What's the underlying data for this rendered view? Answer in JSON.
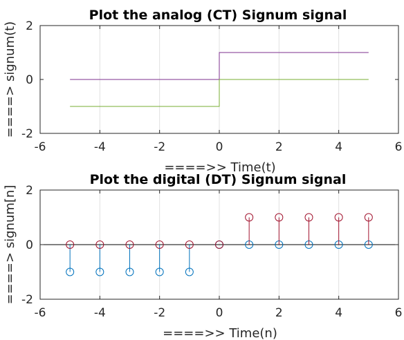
{
  "chart_data": [
    {
      "type": "line",
      "title": "Plot the analog (CT) Signum signal",
      "xlabel": "====>>  Time(t)",
      "ylabel": "====>  signum(t)",
      "xlim": [
        -6,
        6
      ],
      "ylim": [
        -2,
        2
      ],
      "xticks": [
        "-6",
        "-4",
        "-2",
        "0",
        "2",
        "4",
        "6"
      ],
      "yticks": [
        "-2",
        "0",
        "2"
      ],
      "grid": "vertical",
      "series": [
        {
          "color": "#7e2f8e",
          "x": [
            -5,
            0,
            0,
            5
          ],
          "y": [
            0,
            0,
            1,
            1
          ]
        },
        {
          "color": "#77ac30",
          "x": [
            -5,
            0,
            0,
            5
          ],
          "y": [
            -1,
            -1,
            0,
            0
          ]
        }
      ]
    },
    {
      "type": "stem",
      "title": "Plot the digital (DT) Signum signal",
      "xlabel": "====>>  Time(n)",
      "ylabel": "====>  signum[n]",
      "xlim": [
        -6,
        6
      ],
      "ylim": [
        -2,
        2
      ],
      "xticks": [
        "-6",
        "-4",
        "-2",
        "0",
        "2",
        "4",
        "6"
      ],
      "yticks": [
        "-2",
        "0",
        "2"
      ],
      "grid": "vertical",
      "baseline": 0,
      "series": [
        {
          "color": "#0072bd",
          "x": [
            -5,
            -4,
            -3,
            -2,
            -1,
            0,
            1,
            2,
            3,
            4,
            5
          ],
          "y": [
            -1,
            -1,
            -1,
            -1,
            -1,
            0,
            0,
            0,
            0,
            0,
            0
          ]
        },
        {
          "color": "#a2142f",
          "x": [
            -5,
            -4,
            -3,
            -2,
            -1,
            0,
            1,
            2,
            3,
            4,
            5
          ],
          "y": [
            0,
            0,
            0,
            0,
            0,
            0,
            1,
            1,
            1,
            1,
            1
          ]
        }
      ]
    }
  ]
}
